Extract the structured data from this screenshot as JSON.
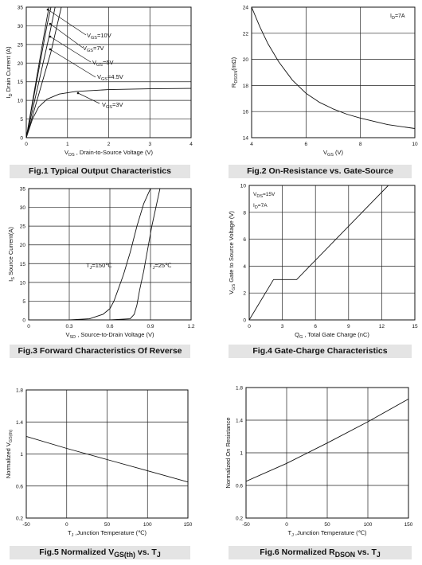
{
  "figures": [
    {
      "caption": "Fig.1 Typical Output Characteristics",
      "caption_html": "Fig.1 Typical Output Characteristics"
    },
    {
      "caption": "Fig.2 On-Resistance vs. Gate-Source",
      "caption_html": "Fig.2 On-Resistance vs. Gate-Source"
    },
    {
      "caption": "Fig.3 Forward Characteristics Of Reverse",
      "caption_html": "Fig.3 Forward Characteristics Of Reverse"
    },
    {
      "caption": "Fig.4 Gate-Charge Characteristics",
      "caption_html": "Fig.4 Gate-Charge Characteristics"
    },
    {
      "caption": "Fig.5 Normalized VGS(th) vs. TJ",
      "caption_html": "Fig.5 Normalized V<sub>GS(th)</sub> vs. T<sub>J</sub>"
    },
    {
      "caption": "Fig.6 Normalized RDSON vs. TJ",
      "caption_html": "Fig.6 Normalized R<sub>DSON</sub> vs. T<sub>J</sub>"
    }
  ],
  "chart_data": [
    {
      "type": "line",
      "title": "Fig.1 Typical Output Characteristics",
      "xlabel": "VDS , Drain-to-Source Voltage (V)",
      "ylabel": "ID Drain Current (A)",
      "xlim": [
        0,
        4
      ],
      "ylim": [
        0,
        35
      ],
      "xticks": [
        0,
        1,
        2,
        3,
        4
      ],
      "yticks": [
        0,
        5,
        10,
        15,
        20,
        25,
        30,
        35
      ],
      "grid": true,
      "series": [
        {
          "name": "VGS=10V",
          "x": [
            0,
            0.5,
            0.55
          ],
          "y": [
            0,
            32,
            35
          ]
        },
        {
          "name": "VGS=7V",
          "x": [
            0,
            0.5,
            0.6
          ],
          "y": [
            0,
            30,
            35
          ]
        },
        {
          "name": "VGS=5V",
          "x": [
            0,
            0.55,
            0.7
          ],
          "y": [
            0,
            27,
            35
          ]
        },
        {
          "name": "VGS=4.5V",
          "x": [
            0,
            0.6,
            0.85
          ],
          "y": [
            0,
            23,
            35
          ]
        },
        {
          "name": "VGS=3V",
          "x": [
            0,
            0.15,
            0.3,
            0.5,
            0.8,
            1.2,
            2.0,
            3.0,
            4.0
          ],
          "y": [
            0,
            5,
            8.2,
            10.3,
            11.7,
            12.4,
            12.9,
            13.1,
            13.2
          ]
        }
      ],
      "annotations": [
        "VGS=10V",
        "VGS=7V",
        "VGS=5V",
        "VGS=4.5V",
        "VGS=3V"
      ]
    },
    {
      "type": "line",
      "title": "Fig.2 On-Resistance vs. Gate-Source",
      "xlabel": "VGS (V)",
      "ylabel": "RDSON(mΩ)",
      "xlim": [
        4,
        10
      ],
      "ylim": [
        14,
        24
      ],
      "xticks": [
        4,
        6,
        8,
        10
      ],
      "yticks": [
        14,
        16,
        18,
        20,
        22,
        24
      ],
      "grid": true,
      "series": [
        {
          "name": "",
          "x": [
            4.0,
            4.3,
            4.6,
            5.0,
            5.5,
            6.0,
            6.5,
            7.0,
            7.5,
            8.0,
            9.0,
            10.0
          ],
          "y": [
            24.0,
            22.5,
            21.2,
            19.8,
            18.4,
            17.4,
            16.7,
            16.2,
            15.8,
            15.5,
            15.0,
            14.7
          ]
        }
      ],
      "annotations": [
        "ID=7A"
      ]
    },
    {
      "type": "line",
      "title": "Fig.3 Forward Characteristics Of Reverse",
      "xlabel": "VSD , Source-to-Drain Voltage (V)",
      "ylabel": "IS Source Current(A)",
      "xlim": [
        0,
        1.2
      ],
      "ylim": [
        0,
        35
      ],
      "xticks": [
        0,
        0.3,
        0.6,
        0.9,
        1.2
      ],
      "yticks": [
        0,
        5,
        10,
        15,
        20,
        25,
        30,
        35
      ],
      "grid": true,
      "series": [
        {
          "name": "TJ=150℃",
          "x": [
            0.3,
            0.45,
            0.55,
            0.6,
            0.63,
            0.66,
            0.7,
            0.75,
            0.8,
            0.85,
            0.9
          ],
          "y": [
            0,
            0.3,
            1.5,
            3,
            5,
            8,
            12,
            18,
            25,
            31,
            35
          ]
        },
        {
          "name": "TJ=25℃",
          "x": [
            0.6,
            0.75,
            0.78,
            0.8,
            0.82,
            0.85,
            0.88,
            0.91,
            0.94,
            0.97
          ],
          "y": [
            0,
            0.3,
            1.5,
            4,
            8,
            13,
            19,
            25,
            30,
            35
          ]
        }
      ],
      "annotations": [
        "TJ=150℃",
        "TJ=25℃"
      ]
    },
    {
      "type": "line",
      "title": "Fig.4 Gate-Charge Characteristics",
      "xlabel": "QG , Total Gate Charge (nC)",
      "ylabel": "VGS Gate to Source Voltage (V)",
      "xlim": [
        0,
        15
      ],
      "ylim": [
        0,
        10
      ],
      "xticks": [
        0,
        3,
        6,
        9,
        12,
        15
      ],
      "yticks": [
        0,
        2,
        4,
        6,
        8,
        10
      ],
      "grid": true,
      "series": [
        {
          "name": "",
          "x": [
            0,
            2.2,
            4.3,
            12.6
          ],
          "y": [
            0,
            3.0,
            3.0,
            10
          ]
        }
      ],
      "annotations": [
        "VDS=15V",
        "ID=7A"
      ]
    },
    {
      "type": "line",
      "title": "Fig.5 Normalized VGS(th) vs. TJ",
      "xlabel": "TJ ,Junction Temperature (℃)",
      "ylabel": "Normalized VGS(th)",
      "xlim": [
        -50,
        150
      ],
      "ylim": [
        0.2,
        1.8
      ],
      "xticks": [
        -50,
        0,
        50,
        100,
        150
      ],
      "yticks": [
        0.2,
        0.6,
        1.0,
        1.4,
        1.8
      ],
      "grid": true,
      "series": [
        {
          "name": "",
          "x": [
            -50,
            0,
            50,
            100,
            150
          ],
          "y": [
            1.22,
            1.07,
            0.93,
            0.79,
            0.65
          ]
        }
      ]
    },
    {
      "type": "line",
      "title": "Fig.6 Normalized RDSON vs. TJ",
      "xlabel": "TJ ,Junction Temperature (℃)",
      "ylabel": "Normalized On Resistance",
      "xlim": [
        -50,
        150
      ],
      "ylim": [
        0.2,
        1.8
      ],
      "xticks": [
        -50,
        0,
        50,
        100,
        150
      ],
      "yticks": [
        0.2,
        0.6,
        1.0,
        1.4,
        1.8
      ],
      "grid": true,
      "series": [
        {
          "name": "",
          "x": [
            -50,
            0,
            50,
            100,
            150
          ],
          "y": [
            0.65,
            0.87,
            1.12,
            1.38,
            1.66
          ]
        }
      ]
    }
  ]
}
